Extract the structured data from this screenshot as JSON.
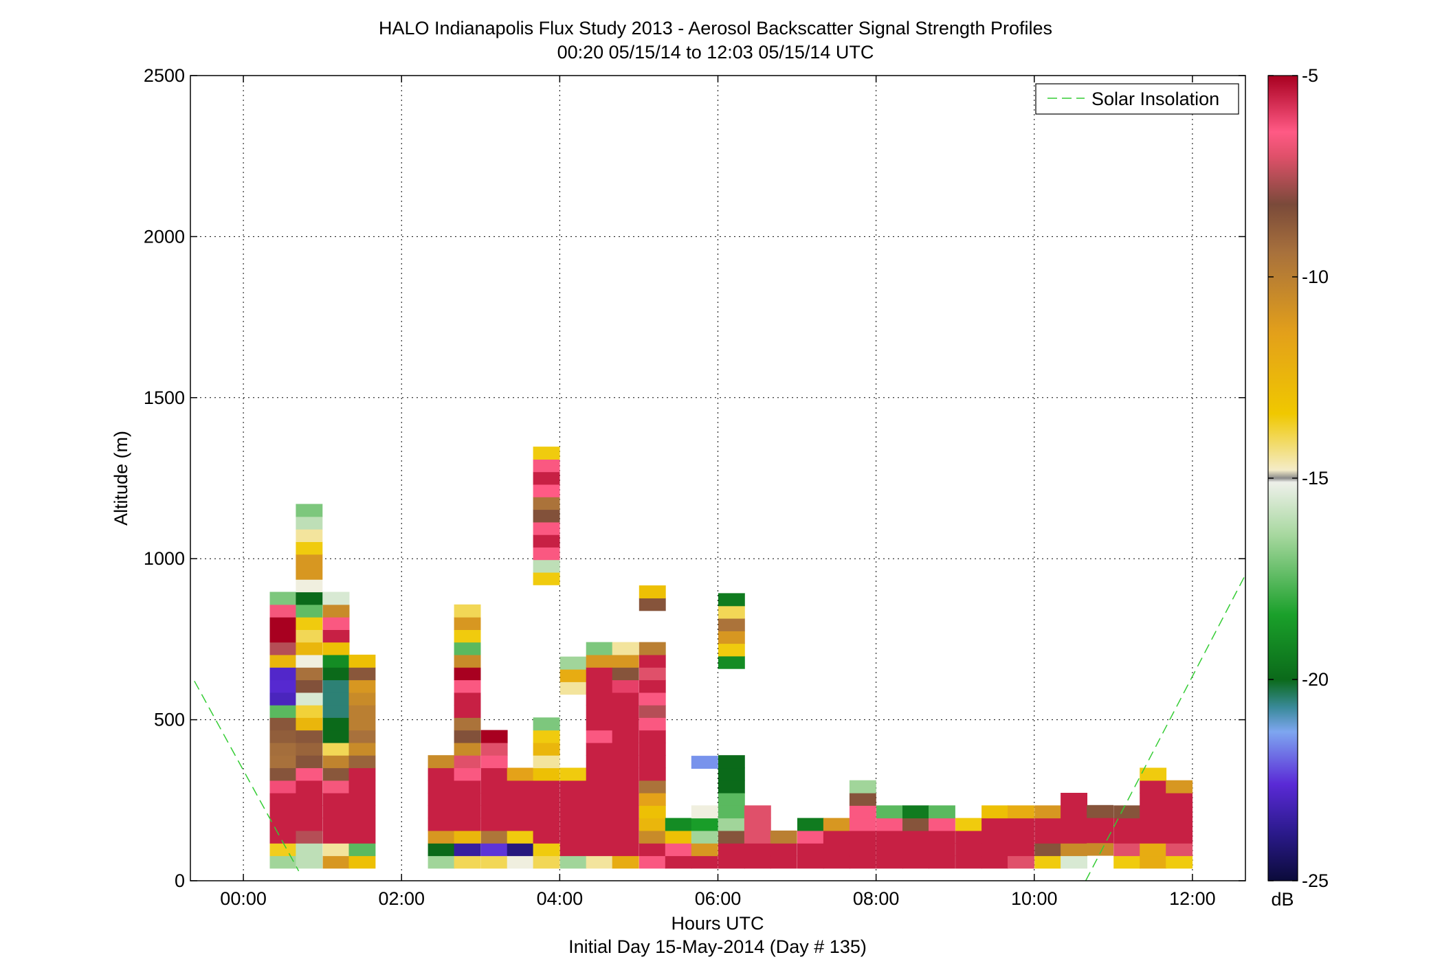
{
  "chart_data": {
    "type": "heatmap",
    "title": "HALO Indianapolis Flux Study 2013 - Aerosol Backscatter Signal Strength Profiles",
    "subtitle": "00:20 05/15/14 to 12:03 05/15/14  UTC",
    "xlabel": "Hours UTC",
    "xlabel2": "Initial Day 15-May-2014 (Day # 135)",
    "ylabel": "Altitude (m)",
    "colorbar_label": "dB",
    "xlim": [
      -0.67,
      12.67
    ],
    "ylim": [
      0,
      2500
    ],
    "x_ticks": [
      0,
      2,
      4,
      6,
      8,
      10,
      12
    ],
    "x_tick_labels": [
      "00:00",
      "02:00",
      "04:00",
      "06:00",
      "08:00",
      "10:00",
      "12:00"
    ],
    "y_ticks": [
      0,
      500,
      1000,
      1500,
      2000,
      2500
    ],
    "y_tick_labels": [
      "0",
      "500",
      "1000",
      "1500",
      "2000",
      "2500"
    ],
    "colorbar_range": [
      -25,
      -5
    ],
    "colorbar_ticks": [
      -25,
      -20,
      -15,
      -10,
      -5
    ],
    "colorbar_tick_labels": [
      "-25",
      "-20",
      "-15",
      "-10",
      "-5"
    ],
    "grid": true,
    "legend": {
      "position": "top-right",
      "entries": [
        {
          "label": "Solar Insolation",
          "color": "#33cc33",
          "style": "dashed"
        }
      ]
    },
    "gate_height_m": 39,
    "time_step_h": 0.333,
    "profiles": [
      {
        "t": 0.5,
        "z0": 39,
        "v": [
          -16.5,
          -13.6,
          -5.5,
          -5.5,
          -5.5,
          -5.5,
          -6.2,
          -8.5,
          -9.4,
          -9.3,
          -8.8,
          -8.6,
          -17.5,
          -23,
          -22.7,
          -22.8,
          -12.5,
          -7.5,
          -5,
          -5,
          -6.6,
          -17
        ]
      },
      {
        "t": 0.83,
        "z0": 39,
        "v": [
          -16,
          -16,
          -7.5,
          -5.5,
          -5.5,
          -5.5,
          -5.5,
          -6.5,
          -8.5,
          -9,
          -8.6,
          -12.5,
          -13.8,
          -15.5,
          -8.4,
          -9.4,
          -15,
          -12.5,
          -14,
          -13.5,
          -17.4,
          -20,
          -15,
          -11,
          -11,
          -13.5,
          -14.5,
          -16,
          -17
        ]
      },
      {
        "t": 1.17,
        "z0": 39,
        "v": [
          -11,
          -14.5,
          -5.5,
          -5.5,
          -5.5,
          -5.5,
          -6.6,
          -8.6,
          -10.2,
          -14,
          -20,
          -20,
          -20.5,
          -20.5,
          -20.5,
          -20,
          -19,
          -13,
          -5.5,
          -6.5,
          -10.5,
          -15.5
        ]
      },
      {
        "t": 1.5,
        "z0": 39,
        "v": [
          -13,
          -17.5,
          -5.5,
          -5.5,
          -5.5,
          -5.5,
          -5.5,
          -5.5,
          -9,
          -10.5,
          -9.4,
          -10,
          -10,
          -10.5,
          -11,
          -8.6,
          -13
        ]
      },
      {
        "t": 2.5,
        "z0": 39,
        "v": [
          -16.5,
          -20,
          -11,
          -5.5,
          -5.5,
          -5.5,
          -5.5,
          -5.5,
          -10.5
        ]
      },
      {
        "t": 2.83,
        "z0": 39,
        "v": [
          -14,
          -23.5,
          -12.5,
          -5.5,
          -5.5,
          -5.5,
          -5.5,
          -6.5,
          -7,
          -10.5,
          -8.4,
          -9.5,
          -5.5,
          -5.5,
          -6.5,
          -5,
          -10.5,
          -17.5,
          -13.5,
          -11,
          -14
        ]
      },
      {
        "t": 3.17,
        "z0": 39,
        "v": [
          -14,
          -22.5,
          -9.6,
          -5.5,
          -5.5,
          -5.5,
          -5.5,
          -5.5,
          -6.5,
          -7,
          -5
        ]
      },
      {
        "t": 3.5,
        "z0": 39,
        "v": [
          -15,
          -24,
          -13.5,
          -5.5,
          -5.5,
          -5.5,
          -5.5,
          -11.5
        ]
      },
      {
        "t": 3.83,
        "z0": 39,
        "v": [
          -14,
          -13.5,
          -5.5,
          -5.5,
          -5.5,
          -5.5,
          -5.5,
          -13,
          -14.5,
          -12.5,
          -13.5,
          -17
        ],
        "z1": 919,
        "v1": [
          -13.5,
          -16,
          -6.5,
          -5.5,
          -6.5,
          -8.4,
          -9.5,
          -6.4,
          -5.5,
          -6.5,
          -13.5
        ]
      },
      {
        "t": 4.17,
        "z0": 39,
        "v": [
          -16.5,
          -5.5,
          -5.5,
          -5.5,
          -5.5,
          -5.5,
          -5.5,
          -13.5
        ],
        "z1": 579,
        "v1": [
          -14.5,
          -12,
          -16.5
        ]
      },
      {
        "t": 4.5,
        "z0": 39,
        "v": [
          -14.5,
          -5.5,
          -5.5,
          -5.5,
          -5.5,
          -5.5,
          -5.5,
          -5.5,
          -5.5,
          -5.5,
          -6.5,
          -5.5,
          -5.5,
          -5.5,
          -5.5,
          -5.5,
          -11,
          -17
        ]
      },
      {
        "t": 4.83,
        "z0": 39,
        "v": [
          -12,
          -5.5,
          -5.5,
          -5.5,
          -5.5,
          -5.5,
          -5.5,
          -5.5,
          -5.5,
          -5.5,
          -5.5,
          -5.5,
          -5.5,
          -5.5,
          -6,
          -8.5,
          -11,
          -14.5
        ]
      },
      {
        "t": 5.17,
        "z0": 39,
        "v": [
          -6.5,
          -5.5,
          -10.5,
          -12.5,
          -13,
          -11.5,
          -9.5,
          -5.5,
          -5.5,
          -5.5,
          -5.5,
          -6.5,
          -7.5,
          -6.5,
          -5.5,
          -7,
          -5.5,
          -10
        ],
        "z1": 839,
        "v1": [
          -8.5,
          -13
        ]
      },
      {
        "t": 5.5,
        "z0": 39,
        "v": [
          -5.5,
          -6.5,
          -13,
          -19
        ]
      },
      {
        "t": 5.83,
        "z0": 39,
        "v": [
          -5.5,
          -11,
          -16.5,
          -18.5,
          -15
        ],
        "z1": 349,
        "v1": [
          -21.5
        ]
      },
      {
        "t": 6.17,
        "z0": 39,
        "v": [
          -5.5,
          -5.5,
          -8.5,
          -16.5,
          -17.5,
          -17.5,
          -20,
          -20,
          -20
        ],
        "z1": 659,
        "v1": [
          -19,
          -13.5,
          -11,
          -9.5,
          -14,
          -19.5
        ]
      },
      {
        "t": 6.5,
        "z0": 39,
        "v": [
          -5.5,
          -5.5,
          -7,
          -7,
          -7
        ]
      },
      {
        "t": 6.83,
        "z0": 39,
        "v": [
          -5.5,
          -5.5,
          -10
        ]
      },
      {
        "t": 7.17,
        "z0": 39,
        "v": [
          -5.5,
          -5.5,
          -6.5,
          -19.5
        ]
      },
      {
        "t": 7.5,
        "z0": 39,
        "v": [
          -5.5,
          -5.5,
          -5.5,
          -11
        ]
      },
      {
        "t": 7.83,
        "z0": 39,
        "v": [
          -5.5,
          -5.5,
          -5.5,
          -6.5,
          -6.5,
          -8.5,
          -16.5
        ]
      },
      {
        "t": 8.17,
        "z0": 39,
        "v": [
          -5.5,
          -5.5,
          -5.5,
          -6.5,
          -17.5
        ]
      },
      {
        "t": 8.5,
        "z0": 39,
        "v": [
          -5.5,
          -5.5,
          -5.5,
          -8.5,
          -19.5
        ]
      },
      {
        "t": 8.83,
        "z0": 39,
        "v": [
          -5.5,
          -5.5,
          -5.5,
          -6.5,
          -17.5
        ]
      },
      {
        "t": 9.17,
        "z0": 39,
        "v": [
          -5.5,
          -5.5,
          -5.5,
          -13.5
        ]
      },
      {
        "t": 9.5,
        "z0": 39,
        "v": [
          -5.5,
          -5.5,
          -5.5,
          -5.5,
          -13
        ]
      },
      {
        "t": 9.83,
        "z0": 39,
        "v": [
          -7,
          -5.5,
          -5.5,
          -5.5,
          -12
        ]
      },
      {
        "t": 10.17,
        "z0": 39,
        "v": [
          -13.5,
          -8.5,
          -5.5,
          -5.5,
          -11
        ]
      },
      {
        "t": 10.5,
        "z0": 39,
        "v": [
          -15.5,
          -10.5,
          -5.5,
          -5.5,
          -5.5,
          -5.5
        ]
      },
      {
        "t": 10.83,
        "z0": 79,
        "v": [
          -10.5,
          -5.5,
          -5.5,
          -8.5
        ]
      },
      {
        "t": 11.17,
        "z0": 39,
        "v": [
          -13.5,
          -7,
          -5.5,
          -5.5,
          -8.5
        ]
      },
      {
        "t": 11.5,
        "z0": 39,
        "v": [
          -12,
          -12,
          -5.5,
          -5.5,
          -5.5,
          -5.5,
          -5.5,
          -13.5
        ]
      },
      {
        "t": 11.83,
        "z0": 39,
        "v": [
          -13.5,
          -7,
          -5.5,
          -5.5,
          -5.5,
          -5.5,
          -11
        ]
      }
    ],
    "solar_insolation_curve": {
      "note_units": "x in hours, y in plot altitude units",
      "segments": [
        [
          [
            -0.62,
            620
          ],
          [
            0.7,
            30
          ]
        ],
        [
          [
            10.65,
            0
          ],
          [
            12.67,
            950
          ]
        ]
      ]
    }
  },
  "colors": {
    "solar_line": "#33cc33",
    "grid": "#000000"
  }
}
